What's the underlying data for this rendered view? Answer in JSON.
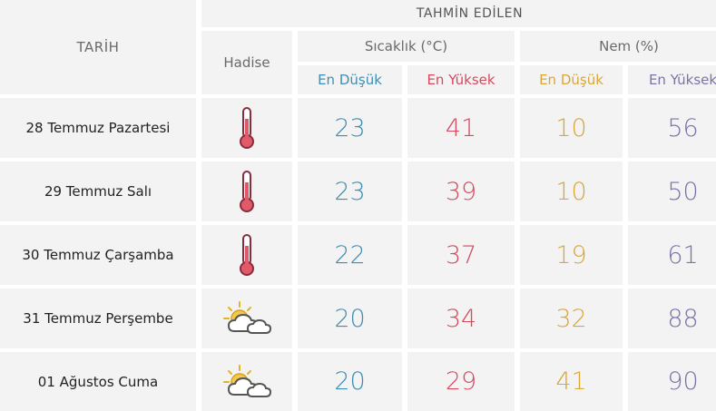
{
  "header": {
    "tarih": "TARİH",
    "tahmin": "TAHMİN EDİLEN",
    "hadise": "Hadise",
    "sicaklik": "Sıcaklık (°C)",
    "nem": "Nem (%)",
    "sicaklik_min": "En Düşük",
    "sicaklik_max": "En Yüksek",
    "nem_min": "En Düşük",
    "nem_max": "En Yüksek"
  },
  "colors": {
    "temp_min": "#3f8db3",
    "temp_max": "#d64a5f",
    "hum_min": "#d9a638",
    "hum_max": "#7b73a8",
    "cell_bg": "#f3f3f3"
  },
  "rows": [
    {
      "date": "28 Temmuz Pazartesi",
      "icon": "thermometer-hot-icon",
      "t_min": "23",
      "t_max": "41",
      "h_min": "10",
      "h_max": "56"
    },
    {
      "date": "29 Temmuz Salı",
      "icon": "thermometer-hot-icon",
      "t_min": "23",
      "t_max": "39",
      "h_min": "10",
      "h_max": "50"
    },
    {
      "date": "30 Temmuz Çarşamba",
      "icon": "thermometer-hot-icon",
      "t_min": "22",
      "t_max": "37",
      "h_min": "19",
      "h_max": "61"
    },
    {
      "date": "31 Temmuz Perşembe",
      "icon": "partly-cloudy-icon",
      "t_min": "20",
      "t_max": "34",
      "h_min": "32",
      "h_max": "88"
    },
    {
      "date": "01 Ağustos Cuma",
      "icon": "partly-cloudy-icon",
      "t_min": "20",
      "t_max": "29",
      "h_min": "41",
      "h_max": "90"
    }
  ]
}
